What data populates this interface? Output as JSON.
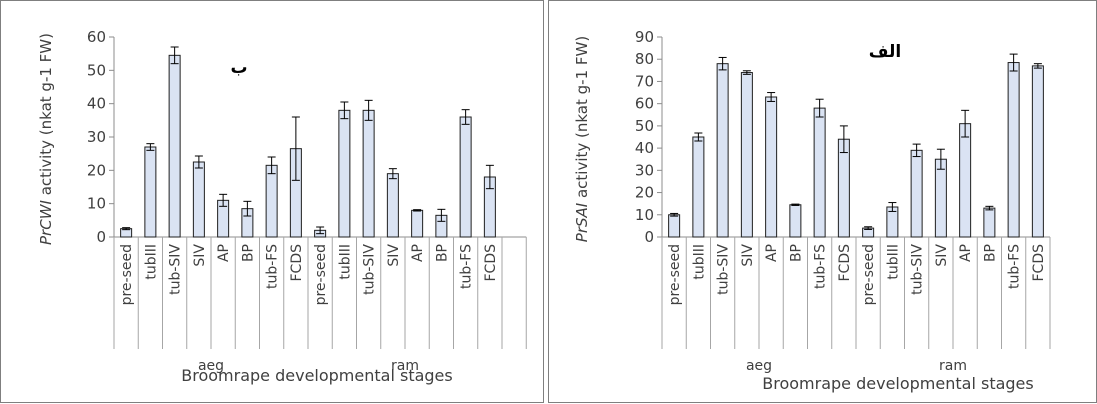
{
  "chart_data": [
    {
      "type": "bar",
      "panel_tag": "ب",
      "ylabel_italic": "PrCWI",
      "ylabel_rest": " activity (nkat g-1 FW)",
      "xlabel": "Broomrape developmental stages",
      "ylim": [
        0,
        60
      ],
      "yticks": [
        0,
        10,
        20,
        30,
        40,
        50,
        60
      ],
      "grid": false,
      "groups": [
        {
          "name": "aeg",
          "categories": [
            "pre-seed",
            "tubIII",
            "tub-SIV",
            "SIV",
            "AP",
            "BP",
            "tub-FS",
            "FCDS"
          ],
          "values": [
            2.5,
            27,
            54.5,
            22.5,
            11,
            8.5,
            21.5,
            26.5
          ],
          "errors": [
            0.3,
            1,
            2.5,
            1.8,
            1.8,
            2.2,
            2.5,
            9.5
          ]
        },
        {
          "name": "ram",
          "categories": [
            "pre-seed",
            "tubIII",
            "tub-SIV",
            "SIV",
            "AP",
            "BP",
            "tub-FS",
            "FCDS"
          ],
          "values": [
            2,
            38,
            38,
            19,
            8,
            6.5,
            36,
            18
          ],
          "errors": [
            1,
            2.5,
            3,
            1.5,
            0.2,
            1.8,
            2.2,
            3.5
          ]
        }
      ],
      "bar_fill": "#dae3f3",
      "bar_stroke": "#1f1f1f"
    },
    {
      "type": "bar",
      "panel_tag": "الف",
      "ylabel_italic": "PrSAI",
      "ylabel_rest": " activity (nkat g-1 FW)",
      "xlabel": "Broomrape developmental stages",
      "ylim": [
        0,
        90
      ],
      "yticks": [
        0,
        10,
        20,
        30,
        40,
        50,
        60,
        70,
        80,
        90
      ],
      "grid": false,
      "groups": [
        {
          "name": "aeg",
          "categories": [
            "pre-seed",
            "tubIII",
            "tub-SIV",
            "SIV",
            "AP",
            "BP",
            "tub-FS",
            "FCDS"
          ],
          "values": [
            10,
            45,
            78,
            74,
            63,
            14.5,
            58,
            44
          ],
          "errors": [
            0.6,
            1.8,
            2.8,
            0.8,
            2,
            0.3,
            4,
            6
          ]
        },
        {
          "name": "ram",
          "categories": [
            "pre-seed",
            "tubIII",
            "tub-SIV",
            "SIV",
            "AP",
            "BP",
            "tub-FS",
            "FCDS"
          ],
          "values": [
            4,
            13.5,
            39,
            35,
            51,
            13,
            78.5,
            77
          ],
          "errors": [
            0.6,
            2,
            2.8,
            4.5,
            6,
            0.8,
            3.8,
            1
          ]
        }
      ],
      "bar_fill": "#dae3f3",
      "bar_stroke": "#1f1f1f"
    }
  ]
}
